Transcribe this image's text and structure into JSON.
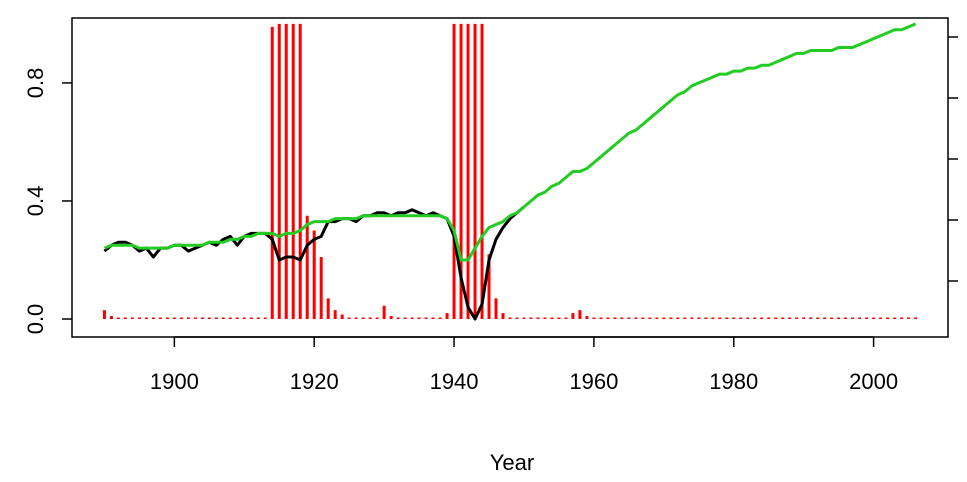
{
  "chart_data": {
    "type": "line",
    "xlabel": "Year",
    "x": [
      1890,
      1891,
      1892,
      1893,
      1894,
      1895,
      1896,
      1897,
      1898,
      1899,
      1900,
      1901,
      1902,
      1903,
      1904,
      1905,
      1906,
      1907,
      1908,
      1909,
      1910,
      1911,
      1912,
      1913,
      1914,
      1915,
      1916,
      1917,
      1918,
      1919,
      1920,
      1921,
      1922,
      1923,
      1924,
      1925,
      1926,
      1927,
      1928,
      1929,
      1930,
      1931,
      1932,
      1933,
      1934,
      1935,
      1936,
      1937,
      1938,
      1939,
      1940,
      1941,
      1942,
      1943,
      1944,
      1945,
      1946,
      1947,
      1948,
      1949,
      1950,
      1951,
      1952,
      1953,
      1954,
      1955,
      1956,
      1957,
      1958,
      1959,
      1960,
      1961,
      1962,
      1963,
      1964,
      1965,
      1966,
      1967,
      1968,
      1969,
      1970,
      1971,
      1972,
      1973,
      1974,
      1975,
      1976,
      1977,
      1978,
      1979,
      1980,
      1981,
      1982,
      1983,
      1984,
      1985,
      1986,
      1987,
      1988,
      1989,
      1990,
      1991,
      1992,
      1993,
      1994,
      1995,
      1996,
      1997,
      1998,
      1999,
      2000,
      2001,
      2002,
      2003,
      2004,
      2005,
      2006
    ],
    "series": [
      {
        "color": "#ff0000",
        "style": "h",
        "values": [
          0.03,
          0.01,
          0.005,
          0.005,
          0.005,
          0.005,
          0.005,
          0.005,
          0.005,
          0.005,
          0.005,
          0.005,
          0.005,
          0.005,
          0.005,
          0.005,
          0.005,
          0.005,
          0.005,
          0.005,
          0.005,
          0.005,
          0.005,
          0.005,
          0.99,
          1,
          1,
          1,
          1,
          0.35,
          0.3,
          0.21,
          0.07,
          0.03,
          0.015,
          0.005,
          0.005,
          0.005,
          0.005,
          0.005,
          0.045,
          0.01,
          0.005,
          0.005,
          0.005,
          0.005,
          0.005,
          0.005,
          0.005,
          0.02,
          1,
          1,
          1,
          1,
          1,
          0.22,
          0.07,
          0.02,
          0.005,
          0.005,
          0.005,
          0.005,
          0.005,
          0.005,
          0.005,
          0.005,
          0.005,
          0.02,
          0.03,
          0.01,
          0.005,
          0.005,
          0.005,
          0.005,
          0.005,
          0.005,
          0.005,
          0.005,
          0.005,
          0.005,
          0.005,
          0.005,
          0.005,
          0.005,
          0.005,
          0.005,
          0.005,
          0.005,
          0.005,
          0.005,
          0.005,
          0.005,
          0.005,
          0.005,
          0.005,
          0.005,
          0.005,
          0.005,
          0.005,
          0.005,
          0.005,
          0.005,
          0.005,
          0.005,
          0.005,
          0.005,
          0.005,
          0.005,
          0.005,
          0.005,
          0.005,
          0.005,
          0.005,
          0.005,
          0.005,
          0.005,
          0.005
        ]
      },
      {
        "color": "#000000",
        "style": "l",
        "values": [
          0.23,
          0.25,
          0.26,
          0.26,
          0.25,
          0.23,
          0.24,
          0.21,
          0.24,
          0.24,
          0.25,
          0.25,
          0.23,
          0.24,
          0.25,
          0.26,
          0.25,
          0.27,
          0.28,
          0.25,
          0.28,
          0.29,
          0.29,
          0.29,
          0.27,
          0.2,
          0.21,
          0.21,
          0.2,
          0.25,
          0.27,
          0.28,
          0.33,
          0.33,
          0.34,
          0.34,
          0.33,
          0.35,
          0.35,
          0.36,
          0.36,
          0.35,
          0.36,
          0.36,
          0.37,
          0.36,
          0.35,
          0.36,
          0.35,
          0.34,
          0.28,
          0.14,
          0.04,
          0,
          0.05,
          0.2,
          0.27,
          0.31,
          0.34,
          0.36,
          0.38,
          null,
          null,
          null,
          null,
          null,
          null,
          null,
          null,
          null,
          null,
          null,
          null,
          null,
          null,
          null,
          null,
          null,
          null,
          null,
          null,
          null,
          null,
          null,
          null,
          null,
          null,
          null,
          null,
          null,
          null,
          null,
          null,
          null,
          null,
          null,
          null,
          null,
          null,
          null,
          null,
          null,
          null,
          null,
          null,
          null,
          null,
          null,
          null,
          null,
          null,
          null,
          null,
          null,
          null,
          null,
          null
        ]
      },
      {
        "color": "#22cc22",
        "style": "l",
        "values": [
          0.24,
          0.25,
          0.25,
          0.25,
          0.25,
          0.24,
          0.24,
          0.24,
          0.24,
          0.24,
          0.25,
          0.25,
          0.25,
          0.25,
          0.25,
          0.26,
          0.26,
          0.26,
          0.27,
          0.27,
          0.28,
          0.28,
          0.29,
          0.29,
          0.29,
          0.28,
          0.29,
          0.29,
          0.3,
          0.32,
          0.33,
          0.33,
          0.33,
          0.34,
          0.34,
          0.34,
          0.34,
          0.35,
          0.35,
          0.35,
          0.35,
          0.35,
          0.35,
          0.35,
          0.35,
          0.35,
          0.35,
          0.35,
          0.35,
          0.34,
          0.3,
          0.2,
          0.2,
          0.24,
          0.28,
          0.31,
          0.32,
          0.33,
          0.35,
          0.36,
          0.38,
          0.4,
          0.42,
          0.43,
          0.45,
          0.46,
          0.48,
          0.5,
          0.5,
          0.51,
          0.53,
          0.55,
          0.57,
          0.59,
          0.61,
          0.63,
          0.64,
          0.66,
          0.68,
          0.7,
          0.72,
          0.74,
          0.76,
          0.77,
          0.79,
          0.8,
          0.81,
          0.82,
          0.83,
          0.83,
          0.84,
          0.84,
          0.85,
          0.85,
          0.86,
          0.86,
          0.87,
          0.88,
          0.89,
          0.9,
          0.9,
          0.91,
          0.91,
          0.91,
          0.91,
          0.92,
          0.92,
          0.92,
          0.93,
          0.94,
          0.95,
          0.96,
          0.97,
          0.98,
          0.98,
          0.99,
          1
        ]
      }
    ],
    "xlim": [
      1885.36,
      2010.64
    ],
    "xticks": [
      1900,
      1920,
      1940,
      1960,
      1980,
      2000
    ],
    "ylim": [
      -0.061,
      1.02
    ],
    "yticks": [
      {
        "value": 0,
        "label": "0.0"
      },
      0.4,
      0.8
    ]
  }
}
